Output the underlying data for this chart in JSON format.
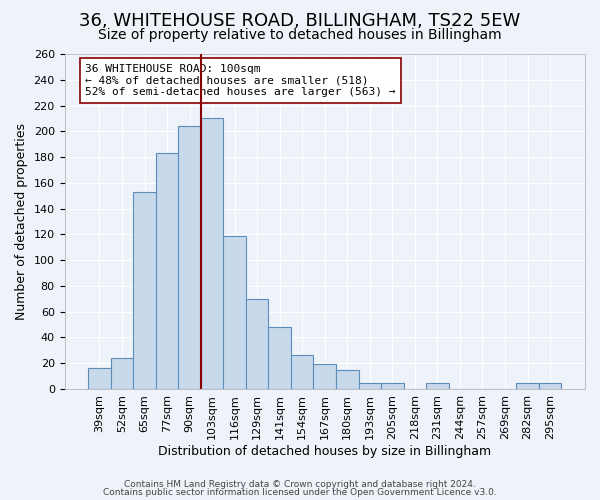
{
  "title": "36, WHITEHOUSE ROAD, BILLINGHAM, TS22 5EW",
  "subtitle": "Size of property relative to detached houses in Billingham",
  "xlabel": "Distribution of detached houses by size in Billingham",
  "ylabel": "Number of detached properties",
  "bin_labels": [
    "39sqm",
    "52sqm",
    "65sqm",
    "77sqm",
    "90sqm",
    "103sqm",
    "116sqm",
    "129sqm",
    "141sqm",
    "154sqm",
    "167sqm",
    "180sqm",
    "193sqm",
    "205sqm",
    "218sqm",
    "231sqm",
    "244sqm",
    "257sqm",
    "269sqm",
    "282sqm",
    "295sqm"
  ],
  "bin_values": [
    16,
    24,
    153,
    183,
    204,
    210,
    119,
    70,
    48,
    26,
    19,
    15,
    5,
    5,
    0,
    5,
    0,
    0,
    0,
    5,
    5
  ],
  "bar_color": "#c9d9ec",
  "bar_edge_color": "#5b8db8",
  "annotation_title": "36 WHITEHOUSE ROAD: 100sqm",
  "annotation_line1": "← 48% of detached houses are smaller (518)",
  "annotation_line2": "52% of semi-detached houses are larger (563) →",
  "footer1": "Contains HM Land Registry data © Crown copyright and database right 2024.",
  "footer2": "Contains public sector information licensed under the Open Government Licence v3.0.",
  "ylim": [
    0,
    260
  ],
  "yticks": [
    0,
    20,
    40,
    60,
    80,
    100,
    120,
    140,
    160,
    180,
    200,
    220,
    240,
    260
  ],
  "red_line_x": 4.5,
  "background_color": "#eef2f9",
  "grid_color": "#ffffff",
  "title_fontsize": 13,
  "subtitle_fontsize": 10,
  "axis_label_fontsize": 9,
  "tick_fontsize": 8,
  "annotation_fontsize": 8,
  "footer_fontsize": 6.5
}
